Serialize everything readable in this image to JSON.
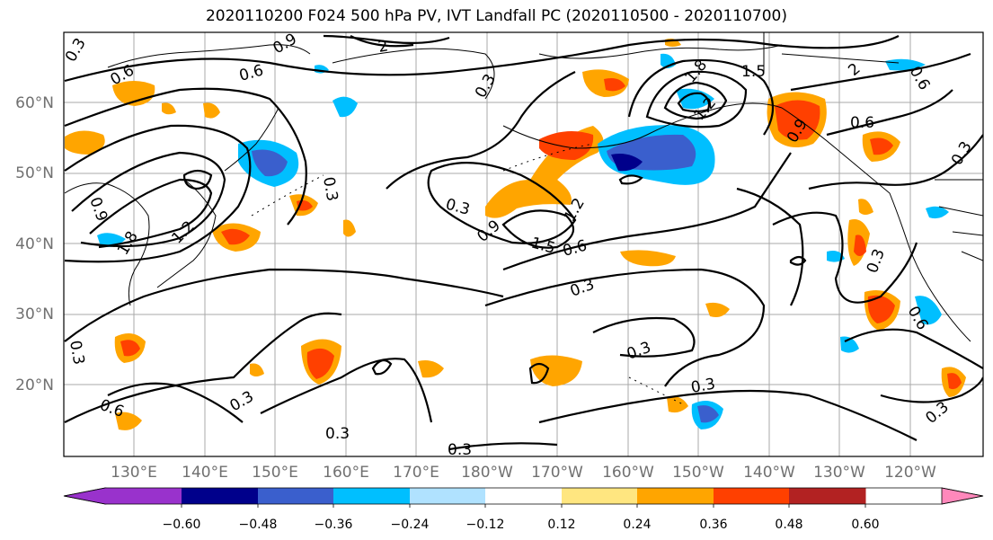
{
  "title": "2020110200 F024 500 hPa PV, IVT Landfall PC (2020110500 - 2020110700)",
  "lat_ticks": [
    "60°N",
    "50°N",
    "40°N",
    "30°N",
    "20°N"
  ],
  "lon_ticks": [
    "130°E",
    "140°E",
    "150°E",
    "160°E",
    "170°E",
    "180°W",
    "170°W",
    "160°W",
    "150°W",
    "140°W",
    "130°W",
    "120°W"
  ],
  "colorbar": {
    "tick_labels": [
      "−0.60",
      "−0.48",
      "−0.36",
      "−0.24",
      "−0.12",
      "0.12",
      "0.24",
      "0.36",
      "0.48",
      "0.60"
    ],
    "colors": [
      "#9932cc",
      "#00008b",
      "#3a5fcd",
      "#00bfff",
      "#b0e2ff",
      "#ffffff",
      "#ffe680",
      "#ffa500",
      "#ff4000",
      "#b22222",
      "#ff88bb"
    ]
  },
  "contour_labels": [
    "0.3",
    "0.6",
    "0.9",
    "1.2",
    "1.5",
    "1.8",
    "2"
  ]
}
